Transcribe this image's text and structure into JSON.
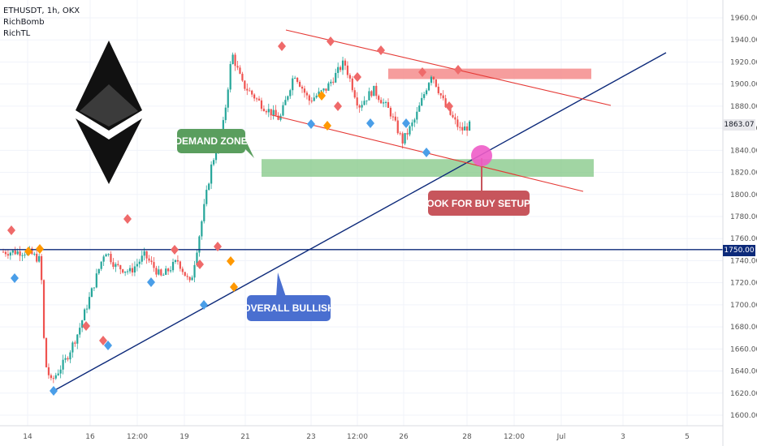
{
  "header": {
    "symbol_line": "ETHUSDT, 1h, OKX",
    "indicator_1": "RichBomb",
    "indicator_2": "RichTL"
  },
  "annotations": {
    "demand_zone": "DEMAND ZONE",
    "look_for_buy": "LOOK FOR BUY SETUPS",
    "overall_bullish": "OVERALL BULLISH"
  },
  "price_tags": {
    "current": "1863.07",
    "support_level": "1750.00"
  },
  "colors": {
    "candle_up": "#26a69a",
    "candle_down": "#ef5350",
    "trendline": "#0d2a7a",
    "horizontal_level": "#0d2a7a",
    "channel": "#e53935",
    "demand_zone": "#81c784",
    "resistance_zone": "#f48c8c",
    "demand_label": "#5a9e5e",
    "buy_label": "#c7555c",
    "bullish_label": "#4a6fd0",
    "circle": "#ee5cc8",
    "marker_red": "#ef6a6a",
    "marker_orange": "#ff9800",
    "marker_blue": "#4a9ee8"
  },
  "icons": {
    "logo": "ethereum-logo-icon"
  },
  "chart_data": {
    "type": "candlestick",
    "y_axis": {
      "ylim": [
        1590,
        1975
      ],
      "ticks": [
        "1960.00",
        "1940.00",
        "1920.00",
        "1900.00",
        "1880.00",
        "1860.00",
        "1840.00",
        "1820.00",
        "1800.00",
        "1780.00",
        "1760.00",
        "1740.00",
        "1720.00",
        "1700.00",
        "1680.00",
        "1660.00",
        "1640.00",
        "1620.00",
        "1600.00"
      ]
    },
    "x_axis": {
      "ticks": [
        "14",
        "16",
        "12:00",
        "19",
        "21",
        "23",
        "12:00",
        "26",
        "28",
        "12:00",
        "Jul",
        "3",
        "5"
      ]
    },
    "price_path": [
      {
        "t": 0,
        "p": 1748
      },
      {
        "t": 1.2,
        "p": 1748
      },
      {
        "t": 1.8,
        "p": 1740
      },
      {
        "t": 2.0,
        "p": 1648
      },
      {
        "t": 2.3,
        "p": 1630
      },
      {
        "t": 3.0,
        "p": 1650
      },
      {
        "t": 3.6,
        "p": 1675
      },
      {
        "t": 4.3,
        "p": 1715
      },
      {
        "t": 4.9,
        "p": 1750
      },
      {
        "t": 5.4,
        "p": 1735
      },
      {
        "t": 6.1,
        "p": 1730
      },
      {
        "t": 6.8,
        "p": 1745
      },
      {
        "t": 7.6,
        "p": 1725
      },
      {
        "t": 8.4,
        "p": 1740
      },
      {
        "t": 9.0,
        "p": 1718
      },
      {
        "t": 9.4,
        "p": 1760
      },
      {
        "t": 10.0,
        "p": 1825
      },
      {
        "t": 10.6,
        "p": 1865
      },
      {
        "t": 11.0,
        "p": 1928
      },
      {
        "t": 11.5,
        "p": 1900
      },
      {
        "t": 12.5,
        "p": 1880
      },
      {
        "t": 13.3,
        "p": 1868
      },
      {
        "t": 14.0,
        "p": 1910
      },
      {
        "t": 14.7,
        "p": 1885
      },
      {
        "t": 15.5,
        "p": 1895
      },
      {
        "t": 16.4,
        "p": 1920
      },
      {
        "t": 17.1,
        "p": 1880
      },
      {
        "t": 17.8,
        "p": 1895
      },
      {
        "t": 18.6,
        "p": 1875
      },
      {
        "t": 19.2,
        "p": 1848
      },
      {
        "t": 19.8,
        "p": 1868
      },
      {
        "t": 20.6,
        "p": 1910
      },
      {
        "t": 21.3,
        "p": 1878
      },
      {
        "t": 22.0,
        "p": 1858
      },
      {
        "t": 22.5,
        "p": 1863
      }
    ],
    "horizontal_level": 1750,
    "demand_zone": [
      1816,
      1832
    ],
    "resistance_zone": [
      1906,
      1914
    ],
    "current_price": 1863.07
  }
}
